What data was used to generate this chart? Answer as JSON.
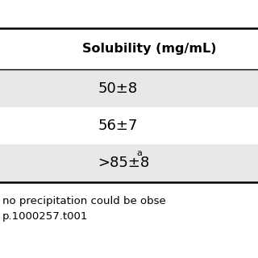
{
  "header": "Solubility (mg/mL)",
  "rows": [
    {
      "value": "50±8",
      "superscript": null,
      "bg": "#e8e8e8"
    },
    {
      "value": "56±7",
      "superscript": null,
      "bg": "#ffffff"
    },
    {
      "value": ">85±8",
      "superscript": "a",
      "bg": "#e8e8e8"
    }
  ],
  "footnote_line1": "no precipitation could be obse",
  "footnote_line2": "p.1000257.t001",
  "bg_color": "#ffffff",
  "row_text_color": "#000000",
  "header_text_color": "#000000",
  "footnote_color": "#000000",
  "header_fontsize": 11.5,
  "row_fontsize": 13,
  "footnote_fontsize": 9.5,
  "superscript_fontsize": 8
}
